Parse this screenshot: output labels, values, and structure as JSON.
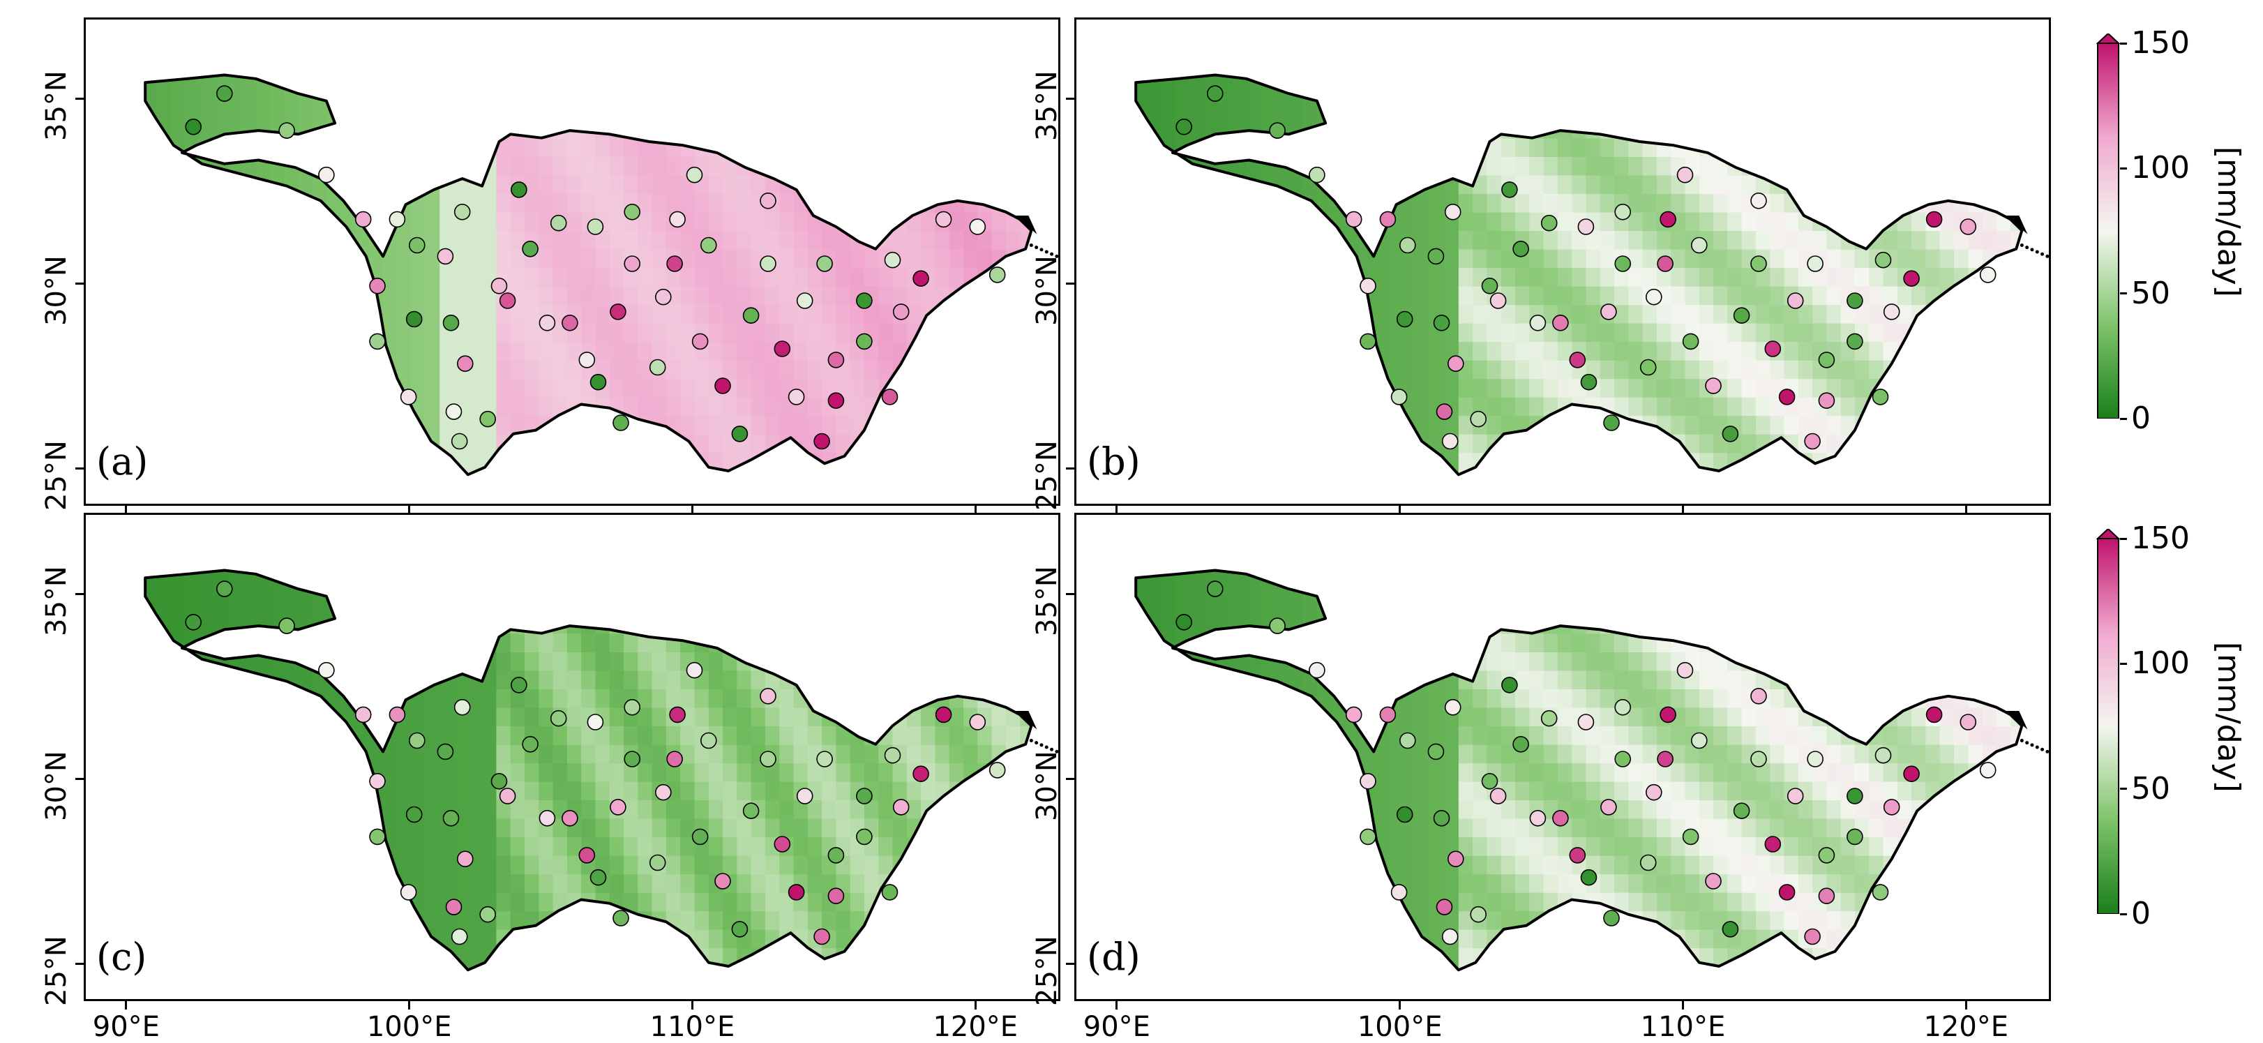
{
  "panels": [
    {
      "id": "a",
      "label": "(a)",
      "scheme": "a"
    },
    {
      "id": "b",
      "label": "(b)",
      "scheme": "b"
    },
    {
      "id": "c",
      "label": "(c)",
      "scheme": "c"
    },
    {
      "id": "d",
      "label": "(d)",
      "scheme": "b"
    }
  ],
  "x_ticks": [
    "90°E",
    "100°E",
    "110°E",
    "120°E"
  ],
  "y_ticks": [
    "25°N",
    "30°N",
    "35°N"
  ],
  "colorbar": {
    "title": "[mm/day]",
    "ticks": [
      "0",
      "50",
      "100",
      "150"
    ],
    "vmin": 0,
    "vmax": 150,
    "colors": [
      "#1a7f1a",
      "#7fc46a",
      "#f4f6f0",
      "#f0a9cf",
      "#c0136c"
    ],
    "extend": "max"
  },
  "station_values": [
    [
      10,
      25,
      55,
      95,
      130,
      80,
      60,
      40,
      110,
      140
    ],
    [
      15,
      20,
      35,
      70,
      125,
      140,
      90,
      60,
      30,
      100
    ],
    [
      20,
      30,
      45,
      90,
      120,
      135,
      75,
      50,
      25,
      110
    ],
    [
      10,
      25,
      50,
      95,
      130,
      140,
      85,
      60,
      35,
      105
    ]
  ]
}
